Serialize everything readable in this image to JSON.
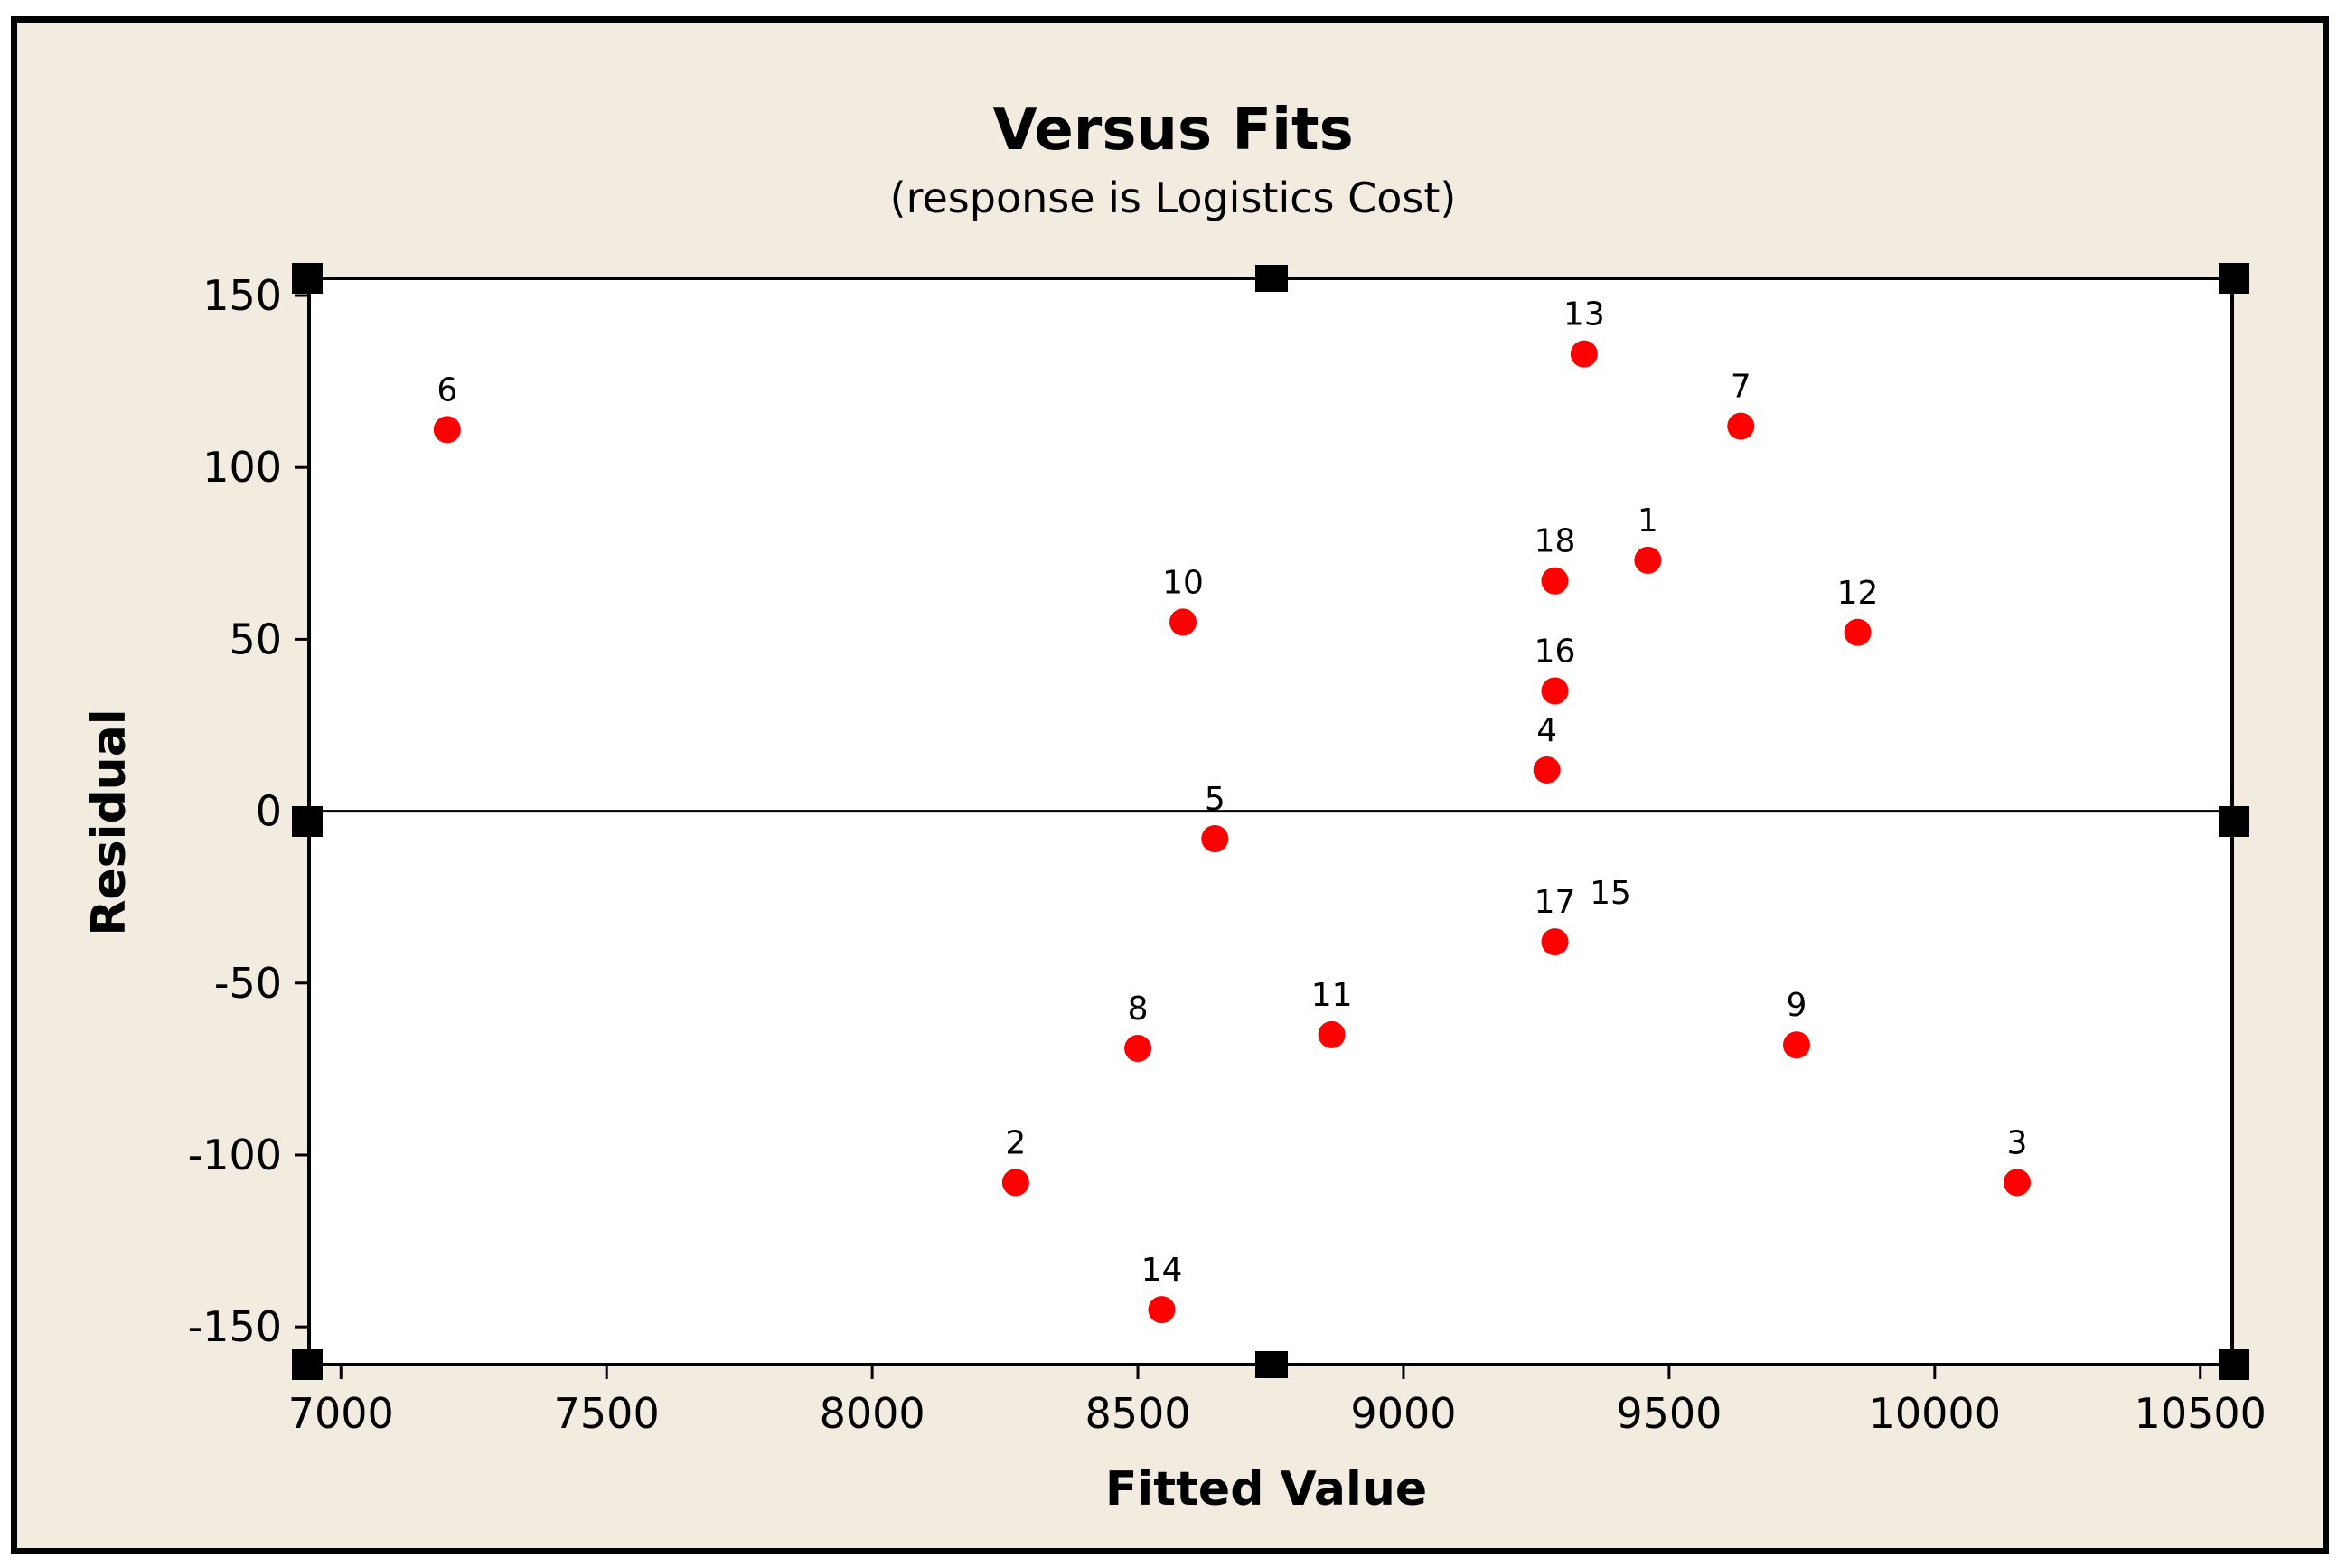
{
  "chart_data": {
    "type": "scatter",
    "title": "Versus Fits",
    "subtitle": "(response is Logistics Cost)",
    "xlabel": "Fitted Value",
    "ylabel": "Residual",
    "xlim": [
      6940,
      10560
    ],
    "ylim": [
      -161,
      155
    ],
    "xticks": [
      "7000",
      "7500",
      "8000",
      "8500",
      "9000",
      "9500",
      "10000",
      "10500"
    ],
    "yticks": [
      "150",
      "100",
      "50",
      "0",
      "-50",
      "-100",
      "-150"
    ],
    "reference_line_y": 0,
    "grid": false,
    "point_color": "#ff0000",
    "points": [
      {
        "label": "6",
        "x": 7200,
        "y": 111
      },
      {
        "label": "13",
        "x": 9340,
        "y": 133
      },
      {
        "label": "7",
        "x": 9635,
        "y": 112
      },
      {
        "label": "18",
        "x": 9285,
        "y": 67
      },
      {
        "label": "1",
        "x": 9460,
        "y": 73
      },
      {
        "label": "10",
        "x": 8585,
        "y": 55
      },
      {
        "label": "12",
        "x": 9855,
        "y": 52
      },
      {
        "label": "16",
        "x": 9285,
        "y": 35
      },
      {
        "label": "4",
        "x": 9270,
        "y": 12
      },
      {
        "label": "5",
        "x": 8645,
        "y": -8
      },
      {
        "label": "17",
        "x": 9285,
        "y": -38
      },
      {
        "label": "11",
        "x": 8865,
        "y": -65
      },
      {
        "label": "8",
        "x": 8500,
        "y": -69
      },
      {
        "label": "9",
        "x": 9740,
        "y": -68
      },
      {
        "label": "2",
        "x": 8270,
        "y": -108
      },
      {
        "label": "3",
        "x": 10155,
        "y": -108
      },
      {
        "label": "14",
        "x": 8545,
        "y": -145
      }
    ],
    "extra_labels": [
      "15"
    ]
  }
}
